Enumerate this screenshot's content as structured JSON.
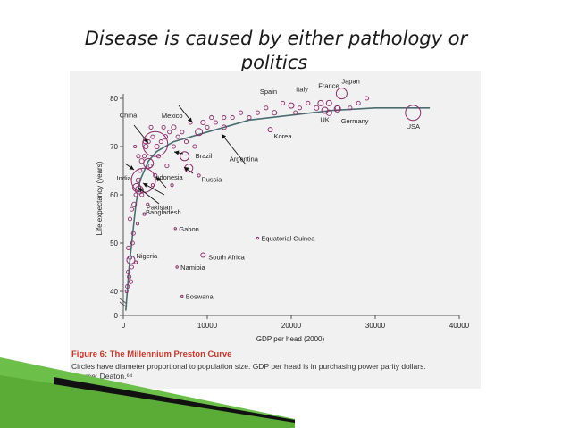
{
  "slide": {
    "title_line1": "Disease is caused by either pathology or",
    "title_line2": "politics",
    "accent_color": "#5dbb2e",
    "bubble_color": "#8b2e6b"
  },
  "caption": {
    "title": "Figure 6: The Millennium Preston Curve",
    "line1": "Circles have diameter proportional to population size. GDP per head is in purchasing power parity dollars.",
    "line2": "Source: Deaton.⁶⁴"
  },
  "chart_data": {
    "type": "scatter",
    "xlabel": "GDP per head (2000)",
    "ylabel": "Life expectancy (years)",
    "xlim": [
      0,
      40000
    ],
    "ylim": [
      0,
      80
    ],
    "x_ticks": [
      "0",
      "10000",
      "20000",
      "30000",
      "40000"
    ],
    "y_ticks": [
      "0",
      "40",
      "50",
      "60",
      "70",
      "80"
    ],
    "labeled_points": [
      {
        "name": "Japan",
        "x": 26000,
        "y": 81,
        "size": 12
      },
      {
        "name": "France",
        "x": 24500,
        "y": 79,
        "size": 6
      },
      {
        "name": "Italy",
        "x": 23500,
        "y": 79,
        "size": 6
      },
      {
        "name": "Spain",
        "x": 20000,
        "y": 78.5,
        "size": 6
      },
      {
        "name": "UK",
        "x": 24000,
        "y": 77.5,
        "size": 7
      },
      {
        "name": "Germany",
        "x": 25500,
        "y": 77.8,
        "size": 7
      },
      {
        "name": "USA",
        "x": 34500,
        "y": 77,
        "size": 17
      },
      {
        "name": "Mexico",
        "x": 9000,
        "y": 73,
        "size": 8
      },
      {
        "name": "Korea",
        "x": 17500,
        "y": 73.5,
        "size": 5
      },
      {
        "name": "Argentina",
        "x": 12000,
        "y": 74,
        "size": 5
      },
      {
        "name": "China",
        "x": 3800,
        "y": 70.5,
        "size": 28
      },
      {
        "name": "Brazil",
        "x": 7300,
        "y": 68,
        "size": 10
      },
      {
        "name": "Russia",
        "x": 7800,
        "y": 65.5,
        "size": 9
      },
      {
        "name": "India",
        "x": 2400,
        "y": 63,
        "size": 27
      },
      {
        "name": "Indonesia",
        "x": 3000,
        "y": 66.5,
        "size": 11
      },
      {
        "name": "Pakistan",
        "x": 1900,
        "y": 61,
        "size": 9
      },
      {
        "name": "Bangladesh",
        "x": 1600,
        "y": 61.5,
        "size": 9
      },
      {
        "name": "Nigeria",
        "x": 900,
        "y": 46.5,
        "size": 9
      },
      {
        "name": "Gabon",
        "x": 6200,
        "y": 53,
        "size": 2
      },
      {
        "name": "Equatorial Guinea",
        "x": 16000,
        "y": 51,
        "size": 2
      },
      {
        "name": "South Africa",
        "x": 9500,
        "y": 47.5,
        "size": 5
      },
      {
        "name": "Namibia",
        "x": 6400,
        "y": 45,
        "size": 2
      },
      {
        "name": "Boswana",
        "x": 7000,
        "y": 39,
        "size": 2
      }
    ],
    "unlabeled_points": [
      [
        500,
        41,
        3
      ],
      [
        600,
        44,
        3
      ],
      [
        700,
        43,
        3
      ],
      [
        800,
        47,
        3
      ],
      [
        900,
        42,
        3
      ],
      [
        1000,
        45,
        3
      ],
      [
        1100,
        50,
        3
      ],
      [
        1200,
        52,
        3
      ],
      [
        800,
        55,
        3
      ],
      [
        1000,
        57,
        3
      ],
      [
        1300,
        58,
        4
      ],
      [
        1500,
        60,
        3
      ],
      [
        1800,
        63,
        4
      ],
      [
        2000,
        65,
        3
      ],
      [
        2200,
        67,
        4
      ],
      [
        2500,
        68,
        3
      ],
      [
        2700,
        70,
        4
      ],
      [
        3000,
        71,
        3
      ],
      [
        3500,
        72,
        3
      ],
      [
        4000,
        70,
        4
      ],
      [
        4500,
        71,
        3
      ],
      [
        5000,
        72,
        4
      ],
      [
        5500,
        73,
        3
      ],
      [
        6000,
        74,
        4
      ],
      [
        6500,
        72,
        3
      ],
      [
        7000,
        73,
        3
      ],
      [
        7500,
        71,
        3
      ],
      [
        8000,
        75,
        3
      ],
      [
        9500,
        75,
        4
      ],
      [
        10000,
        74,
        3
      ],
      [
        10500,
        76,
        3
      ],
      [
        11000,
        75,
        3
      ],
      [
        12000,
        76,
        3
      ],
      [
        13000,
        76,
        3
      ],
      [
        14000,
        77,
        3
      ],
      [
        15000,
        76,
        3
      ],
      [
        16000,
        77,
        3
      ],
      [
        17000,
        78,
        3
      ],
      [
        18000,
        77,
        4
      ],
      [
        19000,
        79,
        3
      ],
      [
        20500,
        77,
        3
      ],
      [
        21000,
        78,
        3
      ],
      [
        22000,
        79,
        3
      ],
      [
        23000,
        78,
        4
      ],
      [
        24500,
        77,
        5
      ],
      [
        25500,
        78,
        4
      ],
      [
        27000,
        78,
        3
      ],
      [
        28000,
        79,
        3
      ],
      [
        29000,
        80,
        3
      ],
      [
        600,
        49,
        3
      ],
      [
        400,
        40,
        2
      ],
      [
        1500,
        46,
        2
      ],
      [
        1700,
        54,
        2
      ],
      [
        2500,
        56,
        2
      ],
      [
        3500,
        62,
        2
      ],
      [
        3200,
        66,
        3
      ],
      [
        1800,
        68,
        3
      ],
      [
        2600,
        71,
        3
      ],
      [
        2200,
        60,
        3
      ],
      [
        4200,
        68,
        3
      ],
      [
        5200,
        66,
        3
      ],
      [
        6000,
        70,
        3
      ],
      [
        8500,
        70,
        3
      ],
      [
        4800,
        74,
        3
      ],
      [
        3300,
        74,
        3
      ],
      [
        1400,
        70,
        2
      ],
      [
        2900,
        58,
        2
      ],
      [
        3800,
        64,
        3
      ],
      [
        5800,
        62,
        2
      ],
      [
        9000,
        64,
        2
      ]
    ],
    "curve": [
      [
        300,
        36
      ],
      [
        700,
        45
      ],
      [
        1000,
        50
      ],
      [
        1500,
        58
      ],
      [
        2000,
        63
      ],
      [
        3000,
        67
      ],
      [
        4000,
        69
      ],
      [
        6000,
        71
      ],
      [
        10000,
        73
      ],
      [
        15000,
        75.5
      ],
      [
        20000,
        76.5
      ],
      [
        25000,
        77.5
      ],
      [
        30000,
        78
      ],
      [
        36500,
        78
      ]
    ],
    "annotations": [
      "Mexico",
      "China",
      "India",
      "Brazil",
      "Russia",
      "Indonesia",
      "Pakistan",
      "Bangladesh",
      "Argentina"
    ]
  }
}
